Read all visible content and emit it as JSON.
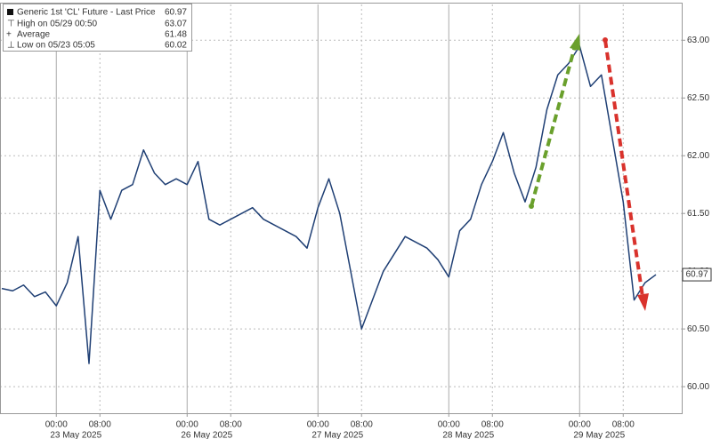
{
  "chart_data": {
    "type": "line",
    "legend": {
      "position": "upper left",
      "series_label": "Generic 1st 'CL' Future - Last Price",
      "high_label": "High on 05/29 00:50",
      "high": 63.07,
      "average_label": "Average",
      "average": 61.48,
      "low_label": "Low on 05/23 05:05",
      "low": 60.02
    },
    "last_price": 60.97,
    "categories": [
      null,
      null,
      null,
      null,
      null,
      "00:00",
      null,
      null,
      null,
      "08:00",
      null,
      null,
      null,
      null,
      null,
      null,
      null,
      "00:00",
      null,
      null,
      null,
      "08:00",
      null,
      null,
      null,
      null,
      null,
      null,
      null,
      "00:00",
      null,
      null,
      null,
      "08:00",
      null,
      null,
      null,
      null,
      null,
      null,
      null,
      "00:00",
      null,
      null,
      null,
      "08:00",
      null,
      null,
      null,
      null,
      null,
      null,
      null,
      "00:00",
      null,
      null,
      null,
      "08:00",
      null,
      null,
      null
    ],
    "dates": [
      null,
      null,
      null,
      null,
      null,
      "23 May 2025",
      null,
      null,
      null,
      null,
      null,
      null,
      null,
      null,
      null,
      null,
      null,
      "26 May 2025",
      null,
      null,
      null,
      null,
      null,
      null,
      null,
      null,
      null,
      null,
      null,
      "27 May 2025",
      null,
      null,
      null,
      null,
      null,
      null,
      null,
      null,
      null,
      null,
      null,
      "28 May 2025",
      null,
      null,
      null,
      null,
      null,
      null,
      null,
      null,
      null,
      null,
      null,
      "29 May 2025",
      null,
      null,
      null,
      null,
      null,
      null,
      null
    ],
    "series": [
      {
        "name": "Generic 1st 'CL' Future - Last Price",
        "color": "#1f3f74",
        "values": [
          60.85,
          60.83,
          60.88,
          60.78,
          60.82,
          60.7,
          60.9,
          61.3,
          60.2,
          61.7,
          61.45,
          61.7,
          61.75,
          62.05,
          61.85,
          61.75,
          61.8,
          61.75,
          61.95,
          61.45,
          61.4,
          61.45,
          61.5,
          61.55,
          61.45,
          61.4,
          61.35,
          61.3,
          61.2,
          61.55,
          61.8,
          61.5,
          61.0,
          60.5,
          60.75,
          61.0,
          61.15,
          61.3,
          61.25,
          61.2,
          61.1,
          60.95,
          61.35,
          61.45,
          61.75,
          61.95,
          62.2,
          61.85,
          61.6,
          61.9,
          62.4,
          62.7,
          62.8,
          62.95,
          62.6,
          62.7,
          62.15,
          61.6,
          60.75,
          60.9,
          60.97
        ]
      }
    ],
    "ylim": [
      59.77,
      63.31
    ],
    "yticks": [
      {
        "value": 60,
        "label": "60.00"
      },
      {
        "value": 60.5,
        "label": "60.50"
      },
      {
        "value": 61,
        "label": "61.00"
      },
      {
        "value": 61.5,
        "label": "61.50"
      },
      {
        "value": 62,
        "label": "62.00"
      },
      {
        "value": 62.5,
        "label": "62.50"
      },
      {
        "value": 63,
        "label": "63.00"
      }
    ],
    "grid": true
  }
}
